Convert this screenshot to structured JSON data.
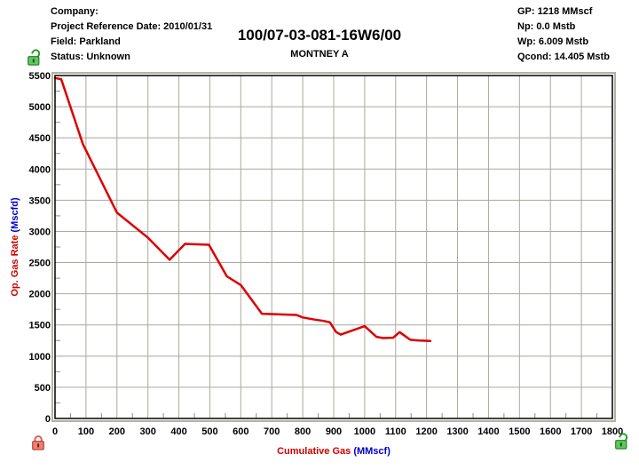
{
  "header": {
    "left": [
      "Company:",
      "Project Reference Date: 2010/01/31",
      "Field: Parkland",
      "Status: Unknown"
    ],
    "title": "100/07-03-081-16W6/00",
    "subtitle": "MONTNEY A",
    "right": [
      "GP: 1218 MMscf",
      "Np: 0.0 Mstb",
      "Wp: 6.009 Mstb",
      "Qcond: 14.405 Mstb"
    ]
  },
  "icons": {
    "status_lock": "unlocked-green",
    "y_axis_lock": "locked-red",
    "x_axis_lock": "unlocked-green"
  },
  "chart_data": {
    "type": "line",
    "xlabel": "Cumulative Gas",
    "xlabel_units": "(MMscf)",
    "ylabel": "Op. Gas Rate",
    "ylabel_units": "(Mscfd)",
    "xlim": [
      0,
      1800
    ],
    "ylim": [
      0,
      5500
    ],
    "x_tick_step": 100,
    "y_tick_step": 500,
    "x_minor_tick_step": 50,
    "y_minor_tick_step": 250,
    "grid": true,
    "legend": "none",
    "colors": {
      "curve": "#dd0000",
      "grid": "#a9a99d",
      "minor_tick": "#8f8f80",
      "border": "#000000",
      "outer_border": "#b2b2a4",
      "tick_text": "#000000",
      "axis_label_text": "#cc0000",
      "axis_label_units": "#0000cc"
    },
    "series": [
      {
        "name": "Op. Gas Rate vs Cumulative Gas",
        "points": [
          [
            0,
            5460
          ],
          [
            20,
            5440
          ],
          [
            90,
            4400
          ],
          [
            200,
            3300
          ],
          [
            300,
            2900
          ],
          [
            370,
            2545
          ],
          [
            420,
            2800
          ],
          [
            497,
            2785
          ],
          [
            555,
            2280
          ],
          [
            600,
            2140
          ],
          [
            668,
            1680
          ],
          [
            780,
            1660
          ],
          [
            800,
            1620
          ],
          [
            840,
            1585
          ],
          [
            868,
            1565
          ],
          [
            888,
            1540
          ],
          [
            908,
            1385
          ],
          [
            923,
            1345
          ],
          [
            1000,
            1480
          ],
          [
            1038,
            1310
          ],
          [
            1060,
            1290
          ],
          [
            1092,
            1295
          ],
          [
            1113,
            1385
          ],
          [
            1147,
            1262
          ],
          [
            1175,
            1250
          ],
          [
            1212,
            1243
          ]
        ]
      }
    ]
  }
}
